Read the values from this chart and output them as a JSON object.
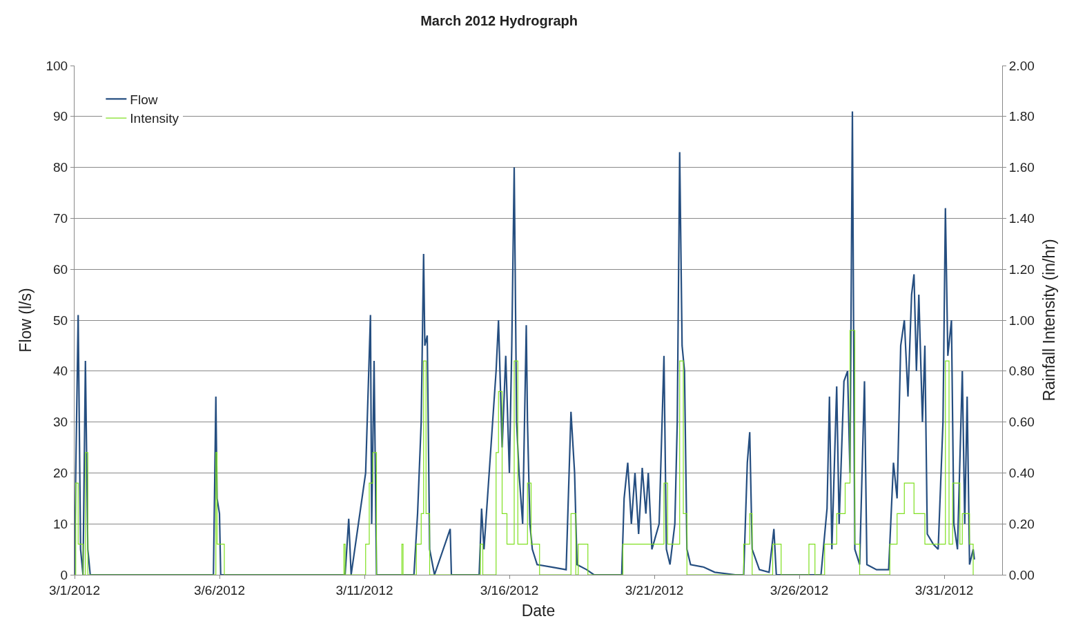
{
  "chart_data": {
    "type": "line",
    "title": "March 2012 Hydrograph",
    "xlabel": "Date",
    "ylabel": "Flow (l/s)",
    "y2label": "Rainfall Intensity (in/hr)",
    "xlim": [
      "2012-03-01",
      "2012-04-02"
    ],
    "xticks": [
      {
        "value": "2012-03-01",
        "label": "3/1/2012"
      },
      {
        "value": "2012-03-06",
        "label": "3/6/2012"
      },
      {
        "value": "2012-03-11",
        "label": "3/11/2012"
      },
      {
        "value": "2012-03-16",
        "label": "3/16/2012"
      },
      {
        "value": "2012-03-21",
        "label": "3/21/2012"
      },
      {
        "value": "2012-03-26",
        "label": "3/26/2012"
      },
      {
        "value": "2012-03-31",
        "label": "3/31/2012"
      }
    ],
    "ylim": [
      0,
      100
    ],
    "yticks": [
      0,
      10,
      20,
      30,
      40,
      50,
      60,
      70,
      80,
      90,
      100
    ],
    "y2lim": [
      0,
      2
    ],
    "y2ticks": [
      {
        "value": 0,
        "label": "0.00"
      },
      {
        "value": 0.2,
        "label": "0.20"
      },
      {
        "value": 0.4,
        "label": "0.40"
      },
      {
        "value": 0.6,
        "label": "0.60"
      },
      {
        "value": 0.8,
        "label": "0.80"
      },
      {
        "value": 1,
        "label": "1.00"
      },
      {
        "value": 1.2,
        "label": "1.20"
      },
      {
        "value": 1.4,
        "label": "1.40"
      },
      {
        "value": 1.6,
        "label": "1.60"
      },
      {
        "value": 1.8,
        "label": "1.80"
      },
      {
        "value": 2,
        "label": "2.00"
      }
    ],
    "grid": "y",
    "legend": "top left",
    "marker": "none",
    "line_style": "solid",
    "series": [
      {
        "name": "Flow",
        "color": "#254e80",
        "x": [
          "2012-03-01T00:00",
          "2012-03-01T01:00",
          "2012-03-01T03:00",
          "2012-03-01T05:00",
          "2012-03-01T07:00",
          "2012-03-01T09:00",
          "2012-03-01T11:00",
          "2012-03-01T13:00",
          "2012-03-05T19:00",
          "2012-03-05T21:00",
          "2012-03-05T22:00",
          "2012-03-06T00:00",
          "2012-03-06T01:00",
          "2012-03-10T08:00",
          "2012-03-10T11:00",
          "2012-03-10T13:00",
          "2012-03-11T01:00",
          "2012-03-11T05:00",
          "2012-03-11T06:00",
          "2012-03-11T08:00",
          "2012-03-11T10:00",
          "2012-03-12T17:00",
          "2012-03-12T20:00",
          "2012-03-12T23:00",
          "2012-03-13T01:00",
          "2012-03-13T02:00",
          "2012-03-13T04:00",
          "2012-03-13T06:00",
          "2012-03-13T10:00",
          "2012-03-13T23:00",
          "2012-03-14T00:00",
          "2012-03-14T23:00",
          "2012-03-15T01:00",
          "2012-03-15T03:00",
          "2012-03-15T13:00",
          "2012-03-15T15:00",
          "2012-03-15T18:00",
          "2012-03-15T21:00",
          "2012-03-16T00:00",
          "2012-03-16T02:00",
          "2012-03-16T04:00",
          "2012-03-16T06:00",
          "2012-03-16T08:00",
          "2012-03-16T11:00",
          "2012-03-16T14:00",
          "2012-03-16T15:00",
          "2012-03-16T17:00",
          "2012-03-16T19:00",
          "2012-03-16T23:00",
          "2012-03-17T11:00",
          "2012-03-17T23:00",
          "2012-03-18T03:00",
          "2012-03-18T06:00",
          "2012-03-18T08:00",
          "2012-03-18T16:00",
          "2012-03-18T22:00",
          "2012-03-19T21:00",
          "2012-03-19T23:00",
          "2012-03-20T02:00",
          "2012-03-20T05:00",
          "2012-03-20T08:00",
          "2012-03-20T11:00",
          "2012-03-20T14:00",
          "2012-03-20T17:00",
          "2012-03-20T19:00",
          "2012-03-20T22:00",
          "2012-03-21T04:00",
          "2012-03-21T08:00",
          "2012-03-21T10:00",
          "2012-03-21T13:00",
          "2012-03-21T17:00",
          "2012-03-21T19:00",
          "2012-03-21T21:00",
          "2012-03-21T23:00",
          "2012-03-22T01:00",
          "2012-03-22T03:00",
          "2012-03-22T06:00",
          "2012-03-22T17:00",
          "2012-03-23T02:00",
          "2012-03-23T19:00",
          "2012-03-24T02:00",
          "2012-03-24T05:00",
          "2012-03-24T07:00",
          "2012-03-24T09:00",
          "2012-03-24T15:00",
          "2012-03-24T23:00",
          "2012-03-25T03:00",
          "2012-03-25T05:00",
          "2012-03-26T18:00",
          "2012-03-26T23:00",
          "2012-03-27T01:00",
          "2012-03-27T03:00",
          "2012-03-27T07:00",
          "2012-03-27T09:00",
          "2012-03-27T13:00",
          "2012-03-27T16:00",
          "2012-03-27T18:00",
          "2012-03-27T20:00",
          "2012-03-27T22:00",
          "2012-03-28T02:00",
          "2012-03-28T06:00",
          "2012-03-28T08:00",
          "2012-03-28T16:00",
          "2012-03-29T02:00",
          "2012-03-29T06:00",
          "2012-03-29T09:00",
          "2012-03-29T12:00",
          "2012-03-29T15:00",
          "2012-03-29T18:00",
          "2012-03-29T21:00",
          "2012-03-29T23:00",
          "2012-03-30T01:00",
          "2012-03-30T03:00",
          "2012-03-30T06:00",
          "2012-03-30T08:00",
          "2012-03-30T10:00",
          "2012-03-30T15:00",
          "2012-03-30T19:00",
          "2012-03-30T23:00",
          "2012-03-31T01:00",
          "2012-03-31T03:00",
          "2012-03-31T06:00",
          "2012-03-31T08:00",
          "2012-03-31T11:00",
          "2012-03-31T15:00",
          "2012-03-31T17:00",
          "2012-03-31T19:00",
          "2012-03-31T21:00",
          "2012-04-01T00:00",
          "2012-04-01T01:00"
        ],
        "values": [
          0,
          20,
          51,
          5,
          0,
          42,
          5,
          0,
          0,
          35,
          15,
          12,
          0,
          0,
          11,
          0,
          20,
          51,
          10,
          42,
          0,
          0,
          12,
          30,
          63,
          45,
          47,
          5,
          0,
          9,
          0,
          0,
          13,
          5,
          40,
          50,
          25,
          43,
          20,
          45,
          80,
          30,
          20,
          10,
          49,
          30,
          10,
          5,
          2,
          1.5,
          1,
          32,
          20,
          2,
          1,
          0,
          0,
          15,
          22,
          10,
          20,
          8,
          21,
          12,
          20,
          5,
          10,
          43,
          5,
          2,
          10,
          30,
          83,
          45,
          40,
          5,
          2,
          1.5,
          0.5,
          0,
          0,
          22,
          28,
          5,
          1,
          0.5,
          9,
          0,
          0,
          13,
          35,
          5,
          37,
          10,
          38,
          40,
          20,
          91,
          5,
          2,
          38,
          2,
          1,
          1,
          22,
          15,
          45,
          50,
          35,
          55,
          59,
          40,
          55,
          30,
          45,
          8,
          6,
          5,
          30,
          72,
          43,
          50,
          10,
          5,
          40,
          10,
          35,
          2,
          5,
          3
        ]
      },
      {
        "name": "Intensity",
        "color": "#7fe020",
        "type": "step",
        "axis": "y2",
        "x": [
          "2012-03-01T00:00",
          "2012-03-01T01:00",
          "2012-03-01T03:00",
          "2012-03-01T07:00",
          "2012-03-01T09:00",
          "2012-03-01T11:00",
          "2012-03-05T21:00",
          "2012-03-05T22:00",
          "2012-03-06T04:00",
          "2012-03-10T07:00",
          "2012-03-10T08:00",
          "2012-03-11T01:00",
          "2012-03-11T04:00",
          "2012-03-11T07:00",
          "2012-03-11T10:00",
          "2012-03-12T07:00",
          "2012-03-12T08:00",
          "2012-03-12T19:00",
          "2012-03-12T23:00",
          "2012-03-13T01:00",
          "2012-03-13T03:00",
          "2012-03-13T06:00",
          "2012-03-15T00:00",
          "2012-03-15T02:00",
          "2012-03-15T13:00",
          "2012-03-15T15:00",
          "2012-03-15T18:00",
          "2012-03-15T22:00",
          "2012-03-16T04:00",
          "2012-03-16T07:00",
          "2012-03-16T15:00",
          "2012-03-16T18:00",
          "2012-03-17T01:00",
          "2012-03-18T03:00",
          "2012-03-18T07:00",
          "2012-03-18T09:00",
          "2012-03-18T17:00",
          "2012-03-19T22:00",
          "2012-03-21T08:00",
          "2012-03-21T11:00",
          "2012-03-21T21:00",
          "2012-03-22T00:00",
          "2012-03-22T03:00",
          "2012-03-24T02:00",
          "2012-03-24T07:00",
          "2012-03-24T09:00",
          "2012-03-25T02:00",
          "2012-03-25T09:00",
          "2012-03-26T08:00",
          "2012-03-26T13:00",
          "2012-03-26T21:00",
          "2012-03-27T07:00",
          "2012-03-27T14:00",
          "2012-03-27T18:00",
          "2012-03-27T22:00",
          "2012-03-28T02:00",
          "2012-03-29T03:00",
          "2012-03-29T09:00",
          "2012-03-29T15:00",
          "2012-03-29T23:00",
          "2012-03-30T08:00",
          "2012-03-31T01:00",
          "2012-03-31T04:00",
          "2012-03-31T07:00",
          "2012-03-31T13:00",
          "2012-03-31T15:00",
          "2012-03-31T21:00",
          "2012-04-01T00:00"
        ],
        "values": [
          0,
          0.36,
          0.12,
          0,
          0.48,
          0,
          0.48,
          0.12,
          0,
          0.12,
          0,
          0.12,
          0.36,
          0.48,
          0,
          0.12,
          0,
          0.12,
          0.24,
          0.84,
          0.24,
          0,
          0.12,
          0,
          0.48,
          0.72,
          0.24,
          0.12,
          0.84,
          0.12,
          0.36,
          0.12,
          0,
          0.24,
          0,
          0.12,
          0,
          0.12,
          0.36,
          0.12,
          0.84,
          0.24,
          0,
          0.12,
          0.24,
          0,
          0.12,
          0,
          0.12,
          0,
          0.12,
          0.24,
          0.36,
          0.96,
          0.12,
          0,
          0.12,
          0.24,
          0.36,
          0.24,
          0.12,
          0.84,
          0.12,
          0.36,
          0.12,
          0.24,
          0.12,
          0
        ]
      }
    ]
  }
}
